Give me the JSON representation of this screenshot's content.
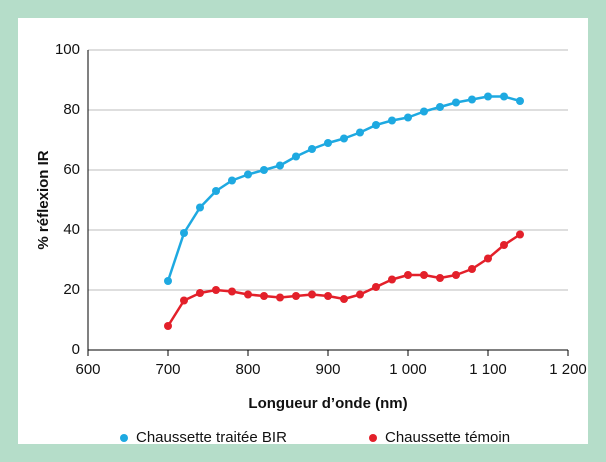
{
  "chart_data": {
    "type": "line",
    "xlabel": "Longueur d’onde (nm)",
    "ylabel": "% réflexion IR",
    "x": [
      700,
      720,
      740,
      760,
      780,
      800,
      820,
      840,
      860,
      880,
      900,
      920,
      940,
      960,
      980,
      1000,
      1020,
      1040,
      1060,
      1080,
      1100,
      1120,
      1140
    ],
    "series": [
      {
        "name": "Chaussette traitée BIR",
        "color": "#1ea9e1",
        "values": [
          23,
          39,
          47.5,
          53,
          56.5,
          58.5,
          60,
          61.5,
          64.5,
          67,
          69,
          70.5,
          72.5,
          75,
          76.5,
          77.5,
          79.5,
          81,
          82.5,
          83.5,
          84.5,
          84.5,
          83
        ]
      },
      {
        "name": "Chaussette témoin",
        "color": "#e3202a",
        "values": [
          8,
          16.5,
          19,
          20,
          19.5,
          18.5,
          18,
          17.5,
          18,
          18.5,
          18,
          17,
          18.5,
          21,
          23.5,
          25,
          25,
          24,
          25,
          27,
          30.5,
          35,
          38.5
        ]
      }
    ],
    "xlim": [
      600,
      1200
    ],
    "xticks": [
      600,
      700,
      800,
      900,
      {
        "value": 1000,
        "label": "1 000"
      },
      {
        "value": 1100,
        "label": "1 100"
      },
      {
        "value": 1200,
        "label": "1 200"
      }
    ],
    "ylim": [
      0,
      100
    ],
    "yticks": [
      0,
      20,
      40,
      60,
      80,
      100
    ],
    "grid": true,
    "legend": "bottom"
  }
}
